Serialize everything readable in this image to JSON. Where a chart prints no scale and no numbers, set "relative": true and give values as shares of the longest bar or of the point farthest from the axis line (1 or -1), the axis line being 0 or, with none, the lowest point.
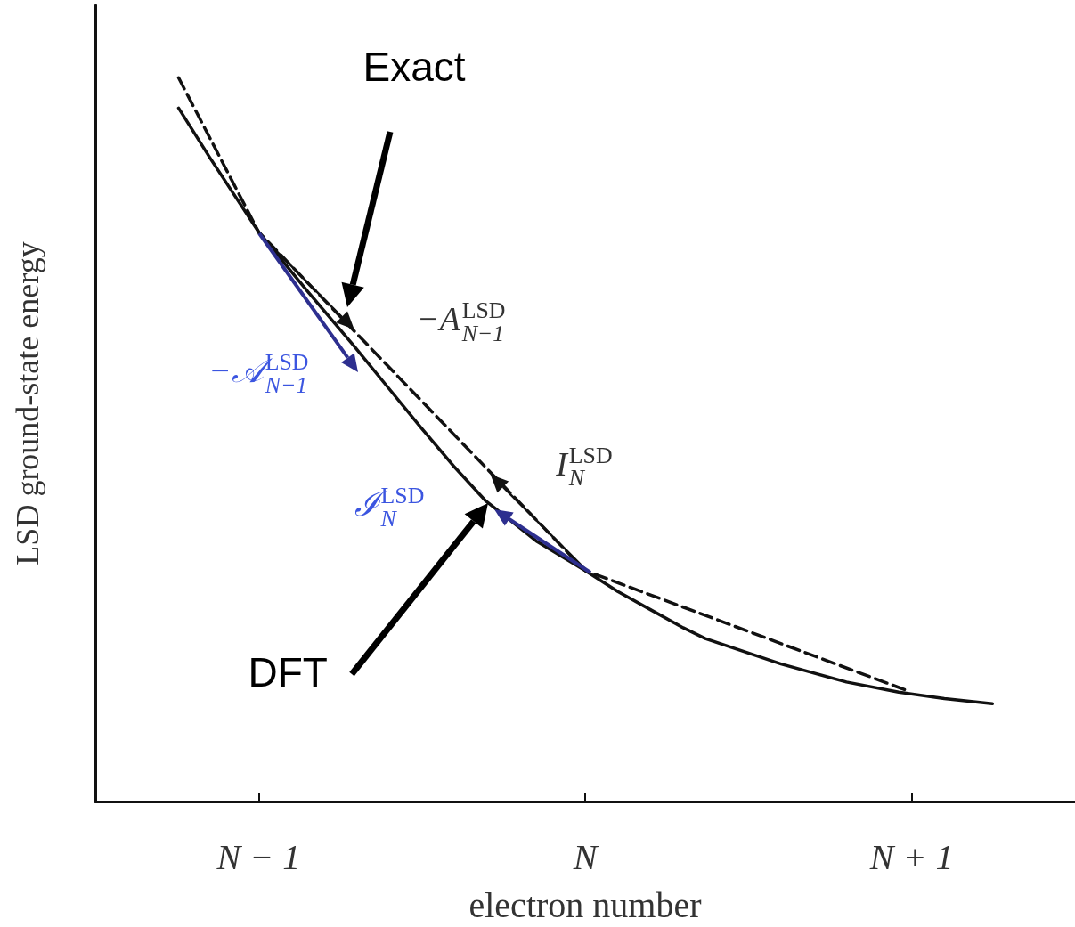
{
  "chart_data": {
    "type": "line",
    "relative": true,
    "xlabel": "electron number",
    "ylabel": "LSD ground-state energy",
    "xlim": [
      -1.5,
      1.5
    ],
    "xticks": [
      {
        "value": -1,
        "label": "N − 1"
      },
      {
        "value": 0,
        "label": "N"
      },
      {
        "value": 1,
        "label": "N + 1"
      }
    ],
    "marker": "none",
    "series": [
      {
        "color": "#111111",
        "line_style": "solid",
        "x": [
          -1.245,
          -1.15,
          -1,
          -0.85,
          -0.707,
          -0.6,
          -0.5,
          -0.4,
          -0.304,
          -0.15,
          0,
          0.1,
          0.2,
          0.3,
          0.368,
          0.6,
          0.8,
          0.96,
          1.1,
          1.247
        ],
        "values": [
          0.958,
          0.89,
          0.787,
          0.705,
          0.629,
          0.57,
          0.515,
          0.462,
          0.415,
          0.36,
          0.319,
          0.29,
          0.265,
          0.24,
          0.225,
          0.19,
          0.165,
          0.151,
          0.142,
          0.135
        ]
      },
      {
        "color": "#111111",
        "line_style": "dashed",
        "x": [
          -1.245,
          -1,
          0,
          0.987
        ],
        "values": [
          1,
          0.787,
          0.319,
          0.153
        ]
      }
    ],
    "annotations": [
      "Exact",
      "DFT",
      {
        "text": "−A$_{N−1}$$^{LSD}$",
        "x": -0.707,
        "y": 0.652
      },
      "−𝒜$_{N−1}$$^{LSD}$",
      {
        "text": "I$_{N}$$^{LSD}$",
        "x": -0.29,
        "y": 0.452
      },
      "ℐ$_{N}$$^{LSD}$"
    ]
  }
}
